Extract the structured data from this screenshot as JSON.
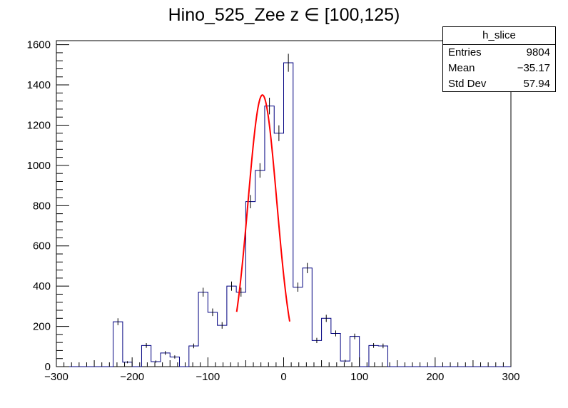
{
  "chart_data": {
    "type": "bar",
    "title": "Hino_525_Zee z  ∈ [100,125)",
    "xlim": [
      -300,
      300
    ],
    "ylim": [
      0,
      1620
    ],
    "x_ticks": [
      -300,
      -200,
      -100,
      0,
      100,
      200,
      300
    ],
    "x_tick_labels": [
      "−300",
      "−200",
      "−100",
      "0",
      "100",
      "200",
      "300"
    ],
    "y_ticks": [
      0,
      200,
      400,
      600,
      800,
      1000,
      1200,
      1400,
      1600
    ],
    "y_tick_labels": [
      "0",
      "200",
      "400",
      "600",
      "800",
      "1000",
      "1200",
      "1400",
      "1600"
    ],
    "bin_width": 12.5,
    "bin_edges_start": -300,
    "bin_contents": [
      0,
      0,
      0,
      0,
      0,
      0,
      223,
      22,
      0,
      105,
      25,
      68,
      48,
      0,
      103,
      370,
      270,
      205,
      400,
      370,
      820,
      975,
      1295,
      1160,
      1510,
      395,
      490,
      130,
      240,
      165,
      28,
      150,
      0,
      105,
      103,
      0,
      0,
      0,
      0,
      0,
      0,
      0,
      0,
      0,
      0,
      0,
      0,
      0
    ],
    "fit": {
      "function": "gaus",
      "constant": 1350,
      "mean": -28,
      "sigma": 19,
      "range": [
        -62,
        8
      ],
      "color": "#ff0000"
    },
    "histogram_color": "#000080",
    "stats": {
      "name": "h_slice",
      "entries_label": "Entries",
      "entries": "9804",
      "mean_label": "Mean",
      "mean": "−35.17",
      "stddev_label": "Std Dev",
      "stddev": "57.94"
    }
  }
}
